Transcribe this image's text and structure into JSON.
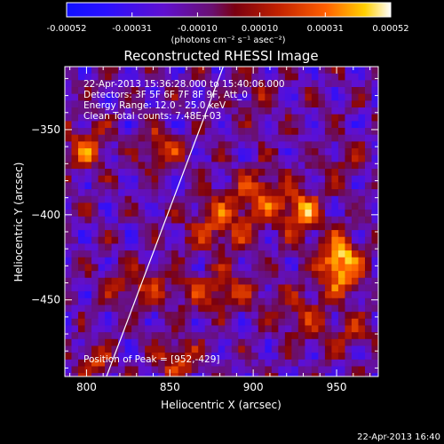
{
  "chart_data": {
    "type": "heatmap",
    "title": "Reconstructed RHESSI Image",
    "xlabel": "Heliocentric X (arcsec)",
    "ylabel": "Heliocentric Y (arcsec)",
    "xlim": [
      787,
      975
    ],
    "ylim": [
      -495,
      -313
    ],
    "x_ticks": [
      800,
      850,
      900,
      950
    ],
    "y_ticks": [
      -350,
      -400,
      -450
    ],
    "colorbar": {
      "range": [
        -0.00052,
        0.00052
      ],
      "ticks": [
        "-0.00052",
        "-0.00031",
        "-0.00010",
        "0.00010",
        "0.00031",
        "0.00052"
      ],
      "tick_values": [
        -0.00052,
        -0.00031,
        -0.0001,
        0.0001,
        0.00031,
        0.00052
      ],
      "unit_label": "(photons cm⁻² s⁻¹ asec⁻²)",
      "colors": [
        "#1010ff",
        "#2a10ff",
        "#6010d0",
        "#6a1070",
        "#7a0010",
        "#c02000",
        "#ff6000",
        "#ffd000",
        "#ffffff"
      ]
    },
    "peak": [
      952,
      -429
    ],
    "sources": [
      {
        "x": 952,
        "y": -429,
        "sx": 9,
        "sy": 11,
        "amp": 1.0
      },
      {
        "x": 928,
        "y": -398,
        "sx": 8,
        "sy": 9,
        "amp": 0.75
      },
      {
        "x": 905,
        "y": -388,
        "sx": 10,
        "sy": 10,
        "amp": 0.55
      },
      {
        "x": 880,
        "y": -405,
        "sx": 14,
        "sy": 12,
        "amp": 0.5
      },
      {
        "x": 880,
        "y": -445,
        "sx": 18,
        "sy": 8,
        "amp": 0.45
      },
      {
        "x": 830,
        "y": -442,
        "sx": 14,
        "sy": 7,
        "amp": 0.45
      },
      {
        "x": 800,
        "y": -360,
        "sx": 8,
        "sy": 9,
        "amp": 0.6
      },
      {
        "x": 845,
        "y": -362,
        "sx": 8,
        "sy": 8,
        "amp": 0.55
      },
      {
        "x": 855,
        "y": -485,
        "sx": 8,
        "sy": 8,
        "amp": 0.6
      },
      {
        "x": 805,
        "y": -485,
        "sx": 7,
        "sy": 6,
        "amp": 0.5
      },
      {
        "x": 960,
        "y": -470,
        "sx": 9,
        "sy": 7,
        "amp": 0.35
      },
      {
        "x": 955,
        "y": -370,
        "sx": 9,
        "sy": 8,
        "amp": 0.25
      },
      {
        "x": 900,
        "y": -330,
        "sx": 10,
        "sy": 8,
        "amp": 0.2
      },
      {
        "x": 930,
        "y": -460,
        "sx": 10,
        "sy": 10,
        "amp": 0.35
      }
    ],
    "limb_line": [
      [
        812,
        -495
      ],
      [
        882,
        -313
      ]
    ],
    "annotations": [
      "22-Apr-2013 15:36:28.000 to 15:40:06.000",
      "Detectors: 3F 5F 6F 7F 8F 9F, Att_0",
      "Energy Range: 12.0 - 25.0 keV",
      "Clean     Total counts: 7.48E+03"
    ],
    "peak_label": "Position of Peak = [952,-429]"
  },
  "footer": {
    "timestamp": "22-Apr-2013 16:40"
  }
}
